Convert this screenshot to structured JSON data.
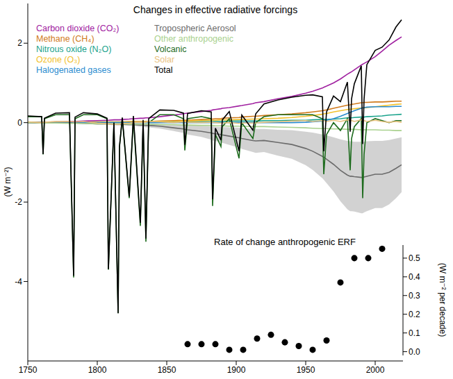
{
  "chart_data": [
    {
      "type": "line",
      "title": "Changes in effective radiative forcings",
      "y_label": "(W m⁻²)",
      "legend": "upper left",
      "grid": false,
      "x": [
        1750,
        1755,
        1760,
        1761,
        1762,
        1770,
        1780,
        1783,
        1784,
        1790,
        1800,
        1807,
        1808,
        1812,
        1815,
        1816,
        1818,
        1823,
        1826,
        1831,
        1833,
        1835,
        1837,
        1845,
        1855,
        1862,
        1863,
        1865,
        1875,
        1882,
        1883,
        1885,
        1889,
        1890,
        1895,
        1902,
        1904,
        1912,
        1914,
        1920,
        1930,
        1940,
        1950,
        1955,
        1962,
        1963,
        1965,
        1970,
        1975,
        1980,
        1982,
        1983,
        1985,
        1990,
        1991,
        1992,
        1994,
        2000,
        2005,
        2010,
        2015,
        2019
      ],
      "xlim": [
        1750,
        2020
      ],
      "xticks": [
        1750,
        1800,
        1850,
        1900,
        1950,
        2000
      ],
      "ylim": [
        -6,
        3
      ],
      "yticks": [
        -4,
        -2,
        0,
        2
      ],
      "series": [
        {
          "name": "Carbon dioxide (CO₂)",
          "color": "#a020a0",
          "values": [
            0,
            0,
            0.01,
            0.01,
            0.01,
            0.02,
            0.03,
            0.03,
            0.03,
            0.04,
            0.05,
            0.06,
            0.06,
            0.07,
            0.07,
            0.07,
            0.08,
            0.09,
            0.1,
            0.11,
            0.11,
            0.12,
            0.12,
            0.15,
            0.19,
            0.22,
            0.23,
            0.24,
            0.28,
            0.31,
            0.32,
            0.33,
            0.35,
            0.36,
            0.38,
            0.42,
            0.43,
            0.48,
            0.5,
            0.53,
            0.6,
            0.66,
            0.74,
            0.79,
            0.87,
            0.89,
            0.92,
            1.0,
            1.1,
            1.22,
            1.26,
            1.28,
            1.33,
            1.45,
            1.47,
            1.49,
            1.53,
            1.66,
            1.8,
            1.95,
            2.07,
            2.16
          ]
        },
        {
          "name": "Methane (CH₄)",
          "color": "#d07a1c",
          "values": [
            0,
            0,
            0,
            0,
            0,
            0.01,
            0.01,
            0.01,
            0.01,
            0.01,
            0.02,
            0.02,
            0.02,
            0.02,
            0.02,
            0.02,
            0.02,
            0.03,
            0.03,
            0.03,
            0.03,
            0.03,
            0.03,
            0.04,
            0.05,
            0.06,
            0.06,
            0.06,
            0.08,
            0.09,
            0.09,
            0.1,
            0.1,
            0.11,
            0.12,
            0.13,
            0.14,
            0.16,
            0.16,
            0.18,
            0.2,
            0.22,
            0.25,
            0.27,
            0.3,
            0.31,
            0.32,
            0.36,
            0.4,
            0.44,
            0.45,
            0.46,
            0.47,
            0.5,
            0.5,
            0.51,
            0.51,
            0.52,
            0.52,
            0.53,
            0.54,
            0.54
          ]
        },
        {
          "name": "Nitrous oxide (N₂O)",
          "color": "#1aa38c",
          "values": [
            0,
            0,
            0,
            0,
            0,
            0,
            0,
            0,
            0,
            0,
            0.01,
            0.01,
            0.01,
            0.01,
            0.01,
            0.01,
            0.01,
            0.01,
            0.01,
            0.01,
            0.01,
            0.01,
            0.01,
            0.02,
            0.02,
            0.02,
            0.02,
            0.02,
            0.03,
            0.03,
            0.03,
            0.03,
            0.03,
            0.03,
            0.04,
            0.04,
            0.04,
            0.04,
            0.04,
            0.05,
            0.05,
            0.06,
            0.06,
            0.07,
            0.08,
            0.08,
            0.08,
            0.09,
            0.1,
            0.12,
            0.12,
            0.12,
            0.13,
            0.14,
            0.14,
            0.14,
            0.15,
            0.16,
            0.17,
            0.19,
            0.2,
            0.21
          ]
        },
        {
          "name": "Ozone (O₃)",
          "color": "#f2c12e",
          "values": [
            0,
            0,
            0,
            0,
            0,
            0,
            0.01,
            0.01,
            0.01,
            0.01,
            0.01,
            0.01,
            0.01,
            0.01,
            0.01,
            0.01,
            0.01,
            0.02,
            0.02,
            0.02,
            0.02,
            0.02,
            0.02,
            0.03,
            0.03,
            0.04,
            0.04,
            0.04,
            0.05,
            0.06,
            0.06,
            0.06,
            0.07,
            0.07,
            0.07,
            0.08,
            0.08,
            0.09,
            0.09,
            0.1,
            0.11,
            0.13,
            0.16,
            0.18,
            0.21,
            0.22,
            0.23,
            0.27,
            0.3,
            0.33,
            0.34,
            0.34,
            0.35,
            0.37,
            0.37,
            0.37,
            0.38,
            0.4,
            0.42,
            0.44,
            0.46,
            0.47
          ]
        },
        {
          "name": "Halogenated gases",
          "color": "#2b8ccf",
          "values": [
            0,
            0,
            0,
            0,
            0,
            0,
            0,
            0,
            0,
            0,
            0,
            0,
            0,
            0,
            0,
            0,
            0,
            0,
            0,
            0,
            0,
            0,
            0,
            0,
            0,
            0,
            0,
            0,
            0,
            0,
            0,
            0,
            0,
            0,
            0,
            0,
            0,
            0,
            0,
            0,
            0,
            0,
            0.01,
            0.02,
            0.04,
            0.05,
            0.06,
            0.1,
            0.16,
            0.23,
            0.26,
            0.27,
            0.3,
            0.36,
            0.37,
            0.38,
            0.39,
            0.4,
            0.4,
            0.4,
            0.41,
            0.41
          ]
        },
        {
          "name": "Tropospheric Aerosol",
          "color": "#6b6b6b",
          "values": [
            0,
            0,
            0,
            0,
            0,
            -0.01,
            -0.01,
            -0.01,
            -0.01,
            -0.02,
            -0.03,
            -0.03,
            -0.03,
            -0.04,
            -0.04,
            -0.04,
            -0.04,
            -0.05,
            -0.05,
            -0.06,
            -0.06,
            -0.07,
            -0.07,
            -0.09,
            -0.13,
            -0.16,
            -0.17,
            -0.18,
            -0.22,
            -0.26,
            -0.27,
            -0.28,
            -0.3,
            -0.31,
            -0.34,
            -0.38,
            -0.4,
            -0.45,
            -0.46,
            -0.45,
            -0.5,
            -0.55,
            -0.65,
            -0.72,
            -0.85,
            -0.87,
            -0.92,
            -1.05,
            -1.2,
            -1.32,
            -1.35,
            -1.35,
            -1.36,
            -1.38,
            -1.38,
            -1.37,
            -1.35,
            -1.3,
            -1.3,
            -1.25,
            -1.15,
            -1.06
          ],
          "lower": [
            0,
            0,
            0,
            0,
            0,
            -0.02,
            -0.02,
            -0.02,
            -0.02,
            -0.03,
            -0.05,
            -0.05,
            -0.05,
            -0.07,
            -0.07,
            -0.07,
            -0.07,
            -0.08,
            -0.08,
            -0.1,
            -0.1,
            -0.12,
            -0.12,
            -0.15,
            -0.21,
            -0.26,
            -0.28,
            -0.3,
            -0.36,
            -0.43,
            -0.45,
            -0.46,
            -0.5,
            -0.51,
            -0.56,
            -0.63,
            -0.66,
            -0.74,
            -0.76,
            -0.74,
            -0.83,
            -0.91,
            -1.07,
            -1.19,
            -1.4,
            -1.44,
            -1.52,
            -1.73,
            -1.98,
            -2.18,
            -2.23,
            -2.23,
            -2.24,
            -2.28,
            -2.28,
            -2.26,
            -2.23,
            -2.15,
            -2.15,
            -2.06,
            -1.9,
            -1.75
          ],
          "upper": [
            0,
            0,
            0,
            0,
            0,
            0,
            0,
            0,
            0,
            -0.01,
            -0.01,
            -0.01,
            -0.01,
            -0.01,
            -0.01,
            -0.01,
            -0.01,
            -0.02,
            -0.02,
            -0.02,
            -0.02,
            -0.02,
            -0.02,
            -0.03,
            -0.05,
            -0.06,
            -0.06,
            -0.06,
            -0.08,
            -0.09,
            -0.09,
            -0.1,
            -0.11,
            -0.11,
            -0.12,
            -0.13,
            -0.14,
            -0.16,
            -0.16,
            -0.16,
            -0.18,
            -0.19,
            -0.23,
            -0.25,
            -0.3,
            -0.3,
            -0.32,
            -0.37,
            -0.42,
            -0.46,
            -0.47,
            -0.47,
            -0.48,
            -0.48,
            -0.48,
            -0.48,
            -0.47,
            -0.46,
            -0.46,
            -0.44,
            -0.4,
            -0.37
          ]
        },
        {
          "name": "Other anthropogenic",
          "color": "#a9d18e",
          "values": [
            0,
            0,
            -0.01,
            -0.01,
            -0.01,
            -0.01,
            -0.02,
            -0.02,
            -0.02,
            -0.02,
            -0.03,
            -0.03,
            -0.03,
            -0.03,
            -0.03,
            -0.03,
            -0.03,
            -0.04,
            -0.04,
            -0.04,
            -0.04,
            -0.04,
            -0.04,
            -0.05,
            -0.05,
            -0.06,
            -0.06,
            -0.06,
            -0.07,
            -0.07,
            -0.07,
            -0.08,
            -0.08,
            -0.08,
            -0.09,
            -0.09,
            -0.09,
            -0.1,
            -0.1,
            -0.1,
            -0.11,
            -0.12,
            -0.13,
            -0.14,
            -0.15,
            -0.15,
            -0.15,
            -0.16,
            -0.16,
            -0.17,
            -0.17,
            -0.17,
            -0.17,
            -0.18,
            -0.18,
            -0.18,
            -0.18,
            -0.18,
            -0.19,
            -0.19,
            -0.2,
            -0.2
          ]
        },
        {
          "name": "Volcanic",
          "color": "#1d6b1d",
          "values": [
            0.15,
            0.15,
            0.15,
            -0.8,
            0.1,
            0.2,
            0.2,
            -3.9,
            0.1,
            0.2,
            0.2,
            0.1,
            -3.7,
            0,
            -4.8,
            -0.6,
            0.1,
            -1.9,
            0.1,
            -2.6,
            0,
            -3.0,
            0,
            0.2,
            0.2,
            0.1,
            -0.7,
            0.1,
            0.15,
            0.1,
            -2.1,
            -0.3,
            -0.6,
            -0.1,
            0.1,
            -0.9,
            0,
            -0.4,
            0,
            0.15,
            0.2,
            0.2,
            0.2,
            0.2,
            0.1,
            -1.3,
            -0.3,
            0,
            -0.2,
            0.1,
            -1.2,
            -0.4,
            -0.1,
            0.1,
            -1.9,
            -0.8,
            0,
            0.1,
            0.05,
            0,
            0.05,
            0.05
          ]
        },
        {
          "name": "Solar",
          "color": "#e9c27f",
          "values": [
            0.02,
            0.01,
            0,
            0.01,
            0.01,
            0.03,
            0.03,
            0.02,
            0.02,
            0.03,
            -0.01,
            -0.03,
            -0.03,
            -0.04,
            -0.04,
            -0.04,
            -0.02,
            -0.02,
            0,
            0.01,
            0,
            0.01,
            0.03,
            0.02,
            0,
            0.02,
            0.02,
            0.01,
            0,
            0.01,
            0.01,
            0,
            -0.01,
            -0.01,
            0,
            -0.02,
            -0.01,
            -0.01,
            -0.01,
            0.01,
            0.02,
            0.04,
            0.05,
            0.03,
            0.05,
            0.05,
            0.03,
            0.06,
            0.03,
            0.07,
            0.06,
            0.05,
            0.03,
            0.07,
            0.07,
            0.05,
            0.03,
            0.06,
            0.03,
            0.01,
            0.03,
            0.01
          ]
        },
        {
          "name": "Total",
          "color": "#000000",
          "values": [
            0.17,
            0.16,
            0.15,
            -0.79,
            0.11,
            0.24,
            0.25,
            -3.86,
            0.14,
            0.25,
            0.22,
            0.11,
            -3.69,
            0,
            -4.8,
            -0.6,
            0.13,
            -1.86,
            0.17,
            -2.52,
            0.07,
            -2.92,
            0.1,
            0.32,
            0.31,
            0.24,
            -0.56,
            0.23,
            0.3,
            0.27,
            -1.93,
            -0.14,
            -0.44,
            0.07,
            0.28,
            -0.72,
            0.19,
            -0.19,
            0.22,
            0.47,
            0.57,
            0.64,
            0.69,
            0.7,
            0.65,
            -0.72,
            0.27,
            0.67,
            0.53,
            1.02,
            -0.23,
            0.6,
            0.98,
            1.43,
            -0.54,
            0.59,
            1.46,
            1.82,
            1.9,
            2.08,
            2.41,
            2.59
          ]
        }
      ]
    },
    {
      "type": "scatter",
      "title": "Rate of change anthropogenic ERF",
      "y_label": "(W m⁻² per decade)",
      "color": "#000000",
      "marker": "circle",
      "tick_labels": "y",
      "x": [
        1865,
        1875,
        1885,
        1895,
        1905,
        1915,
        1925,
        1935,
        1945,
        1955,
        1965,
        1975,
        1985,
        1995,
        2005
      ],
      "values": [
        0.04,
        0.04,
        0.04,
        0.01,
        0.01,
        0.07,
        0.09,
        0.05,
        0.03,
        0.01,
        0.06,
        0.37,
        0.5,
        0.5,
        0.55
      ],
      "xlim": [
        1750,
        2020
      ],
      "ylim": [
        -0.02,
        0.57
      ],
      "yticks": [
        {
          "value": 0,
          "label": "0.0"
        },
        0.1,
        0.2,
        0.3,
        0.4,
        0.5
      ]
    }
  ]
}
